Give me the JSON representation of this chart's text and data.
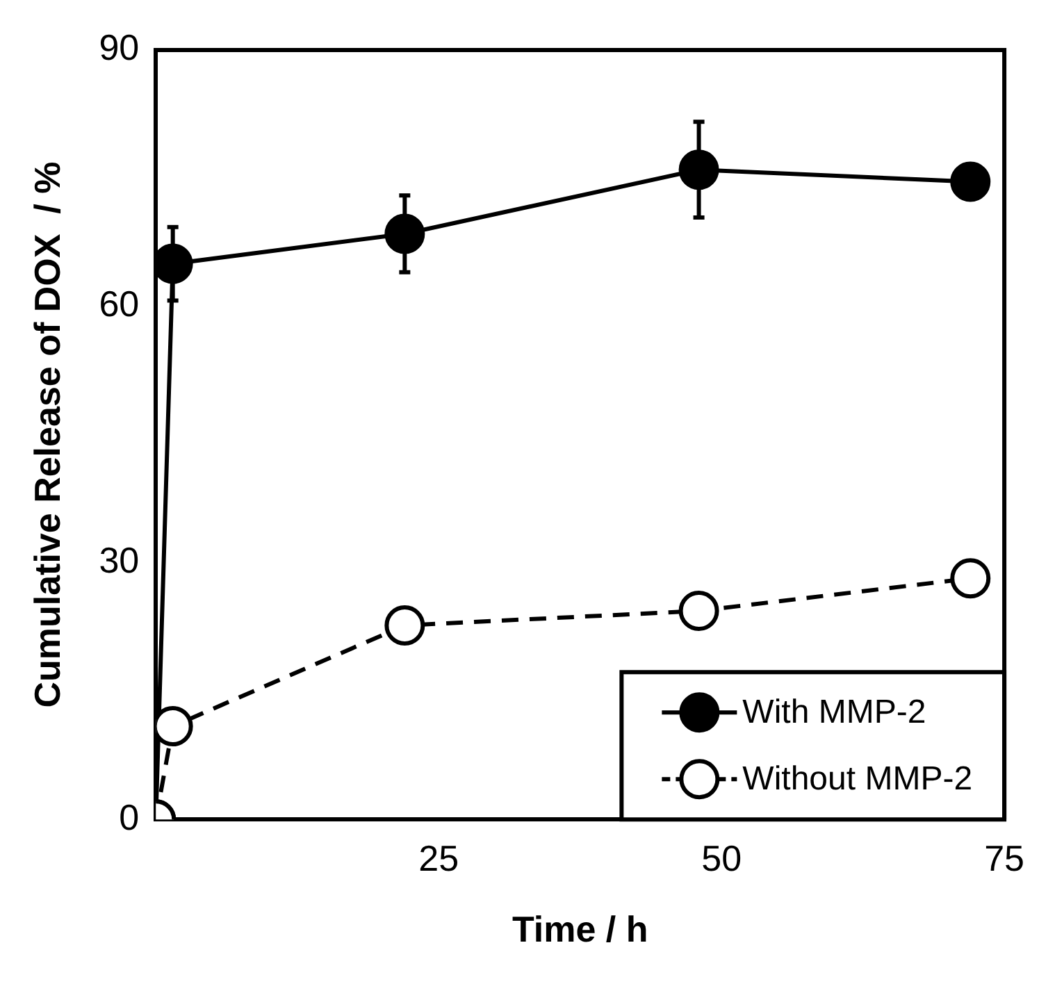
{
  "chart_data": {
    "type": "line",
    "xlabel": "Time / h",
    "ylabel": "Cumulative Release of DOX  / %",
    "xlim": [
      0,
      75
    ],
    "xticks": [
      25,
      50,
      75
    ],
    "ylim": [
      0,
      90
    ],
    "yticks": [
      0,
      30,
      60,
      90
    ],
    "grid": false,
    "legend": "bottom right",
    "marker": "circle",
    "series": [
      {
        "name": "With MMP-2",
        "color": "#000000",
        "line_style": "solid",
        "x": [
          0,
          1.5,
          22,
          48,
          72
        ],
        "values": [
          0,
          65,
          68.5,
          76,
          74.6
        ],
        "errors": [
          null,
          4.3,
          4.5,
          5.6,
          null
        ]
      },
      {
        "name": "Without MMP-2",
        "color": "#000000",
        "line_style": "dashed",
        "x": [
          0,
          1.5,
          22,
          48,
          72
        ],
        "values": [
          0,
          10.9,
          22.7,
          24.4,
          28.2
        ]
      }
    ]
  }
}
